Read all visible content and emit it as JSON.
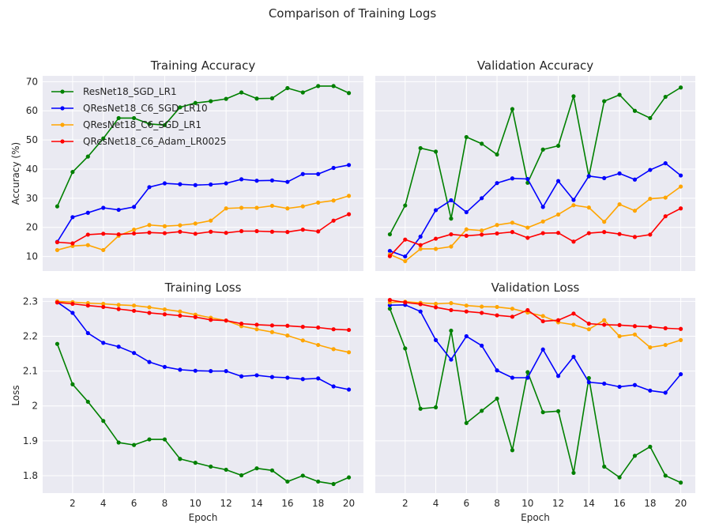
{
  "chart_data": {
    "type": "line",
    "suptitle": "Comparison of Training Logs",
    "epochs": [
      1,
      2,
      3,
      4,
      5,
      6,
      7,
      8,
      9,
      10,
      11,
      12,
      13,
      14,
      15,
      16,
      17,
      18,
      19,
      20
    ],
    "series_styles": [
      {
        "name": "ResNet18_SGD_LR1",
        "color": "#008000"
      },
      {
        "name": "QResNet18_C6_SGD_LR10",
        "color": "#0000ff"
      },
      {
        "name": "QResNet18_C6_SGD_LR1",
        "color": "#ffa500"
      },
      {
        "name": "QResNet18_C6_Adam_LR0025",
        "color": "#ff0000"
      }
    ],
    "panels": [
      {
        "title": "Training Accuracy",
        "xlabel": "",
        "ylabel": "Accuracy (%)",
        "ylim": [
          5,
          72
        ],
        "yticks": [
          10,
          20,
          30,
          40,
          50,
          60,
          70
        ],
        "xticks": [
          2,
          4,
          6,
          8,
          10,
          12,
          14,
          16,
          18,
          20
        ],
        "show_yticks": true,
        "show_xticks": false,
        "legend": "top-left",
        "series": [
          {
            "name": "ResNet18_SGD_LR1",
            "values": [
              27.2,
              39.0,
              44.3,
              50.5,
              57.5,
              57.5,
              55.5,
              55.1,
              61.2,
              62.7,
              63.3,
              64.1,
              66.3,
              64.2,
              64.3,
              67.8,
              66.3,
              68.5,
              68.5,
              66.1
            ]
          },
          {
            "name": "QResNet18_C6_SGD_LR10",
            "values": [
              15.0,
              23.5,
              25.0,
              26.7,
              26.0,
              27.0,
              33.8,
              35.1,
              34.8,
              34.5,
              34.7,
              35.1,
              36.5,
              36.0,
              36.1,
              35.6,
              38.3,
              38.3,
              40.4,
              41.4
            ]
          },
          {
            "name": "QResNet18_C6_SGD_LR1",
            "values": [
              12.2,
              13.6,
              13.9,
              12.2,
              17.1,
              19.2,
              20.8,
              20.4,
              20.7,
              21.3,
              22.3,
              26.5,
              26.7,
              26.7,
              27.4,
              26.5,
              27.2,
              28.5,
              29.2,
              30.8
            ]
          },
          {
            "name": "QResNet18_C6_Adam_LR0025",
            "values": [
              14.9,
              14.5,
              17.5,
              17.8,
              17.6,
              17.9,
              18.2,
              18.0,
              18.5,
              17.8,
              18.5,
              18.1,
              18.7,
              18.7,
              18.5,
              18.4,
              19.2,
              18.6,
              22.3,
              24.5
            ]
          }
        ]
      },
      {
        "title": "Validation Accuracy",
        "xlabel": "",
        "ylabel": "",
        "ylim": [
          5,
          72
        ],
        "yticks": [
          10,
          20,
          30,
          40,
          50,
          60,
          70
        ],
        "xticks": [
          2,
          4,
          6,
          8,
          10,
          12,
          14,
          16,
          18,
          20
        ],
        "show_yticks": false,
        "show_xticks": false,
        "legend": "",
        "series": [
          {
            "name": "ResNet18_SGD_LR1",
            "values": [
              17.6,
              27.5,
              47.2,
              46.0,
              23.0,
              51.0,
              48.7,
              45.0,
              60.6,
              35.3,
              46.7,
              48.0,
              65.0,
              37.5,
              63.3,
              65.5,
              60.0,
              57.5,
              64.8,
              68.0
            ]
          },
          {
            "name": "QResNet18_C6_SGD_LR10",
            "values": [
              11.9,
              10.0,
              16.8,
              25.9,
              29.3,
              25.2,
              30.0,
              35.2,
              36.8,
              36.6,
              27.0,
              35.9,
              29.4,
              37.6,
              36.9,
              38.5,
              36.4,
              39.7,
              42.0,
              37.8
            ]
          },
          {
            "name": "QResNet18_C6_SGD_LR1",
            "values": [
              10.7,
              8.4,
              12.6,
              12.6,
              13.4,
              19.3,
              18.9,
              20.8,
              21.6,
              19.9,
              22.0,
              24.4,
              27.6,
              26.8,
              21.9,
              27.9,
              25.7,
              29.8,
              30.2,
              34.0
            ]
          },
          {
            "name": "QResNet18_C6_Adam_LR0025",
            "values": [
              10.1,
              15.8,
              13.9,
              16.1,
              17.6,
              17.1,
              17.5,
              17.9,
              18.4,
              16.4,
              18.0,
              18.1,
              15.1,
              18.0,
              18.4,
              17.7,
              16.7,
              17.5,
              23.8,
              26.5
            ]
          }
        ]
      },
      {
        "title": "Training Loss",
        "xlabel": "Epoch",
        "ylabel": "Loss",
        "ylim": [
          1.75,
          2.31
        ],
        "yticks": [
          1.8,
          1.9,
          2.0,
          2.1,
          2.2,
          2.3
        ],
        "xticks": [
          2,
          4,
          6,
          8,
          10,
          12,
          14,
          16,
          18,
          20
        ],
        "show_yticks": true,
        "show_xticks": true,
        "legend": "",
        "series": [
          {
            "name": "ResNet18_SGD_LR1",
            "values": [
              2.178,
              2.062,
              2.012,
              1.957,
              1.895,
              1.888,
              1.904,
              1.904,
              1.848,
              1.837,
              1.826,
              1.817,
              1.801,
              1.821,
              1.815,
              1.783,
              1.8,
              1.783,
              1.776,
              1.795
            ]
          },
          {
            "name": "QResNet18_C6_SGD_LR10",
            "values": [
              2.298,
              2.267,
              2.209,
              2.181,
              2.17,
              2.152,
              2.126,
              2.112,
              2.104,
              2.101,
              2.1,
              2.1,
              2.085,
              2.088,
              2.083,
              2.081,
              2.077,
              2.079,
              2.056,
              2.047
            ]
          },
          {
            "name": "QResNet18_C6_SGD_LR1",
            "values": [
              2.3,
              2.298,
              2.295,
              2.293,
              2.29,
              2.288,
              2.283,
              2.277,
              2.271,
              2.262,
              2.253,
              2.245,
              2.229,
              2.22,
              2.212,
              2.202,
              2.188,
              2.175,
              2.163,
              2.154
            ]
          },
          {
            "name": "QResNet18_C6_Adam_LR0025",
            "values": [
              2.297,
              2.293,
              2.288,
              2.284,
              2.278,
              2.273,
              2.267,
              2.263,
              2.259,
              2.255,
              2.247,
              2.245,
              2.236,
              2.233,
              2.231,
              2.23,
              2.227,
              2.225,
              2.22,
              2.218
            ]
          }
        ]
      },
      {
        "title": "Validation Loss",
        "xlabel": "Epoch",
        "ylabel": "",
        "ylim": [
          1.75,
          2.31
        ],
        "yticks": [
          1.8,
          1.9,
          2.0,
          2.1,
          2.2,
          2.3
        ],
        "xticks": [
          2,
          4,
          6,
          8,
          10,
          12,
          14,
          16,
          18,
          20
        ],
        "show_yticks": false,
        "show_xticks": true,
        "legend": "",
        "series": [
          {
            "name": "ResNet18_SGD_LR1",
            "values": [
              2.279,
              2.165,
              1.992,
              1.996,
              2.216,
              1.951,
              1.986,
              2.021,
              1.873,
              2.097,
              1.982,
              1.985,
              1.808,
              2.08,
              1.826,
              1.795,
              1.857,
              1.883,
              1.8,
              1.78
            ]
          },
          {
            "name": "QResNet18_C6_SGD_LR10",
            "values": [
              2.289,
              2.29,
              2.271,
              2.189,
              2.133,
              2.2,
              2.173,
              2.102,
              2.081,
              2.081,
              2.162,
              2.086,
              2.141,
              2.068,
              2.064,
              2.055,
              2.06,
              2.044,
              2.038,
              2.091
            ]
          },
          {
            "name": "QResNet18_C6_SGD_LR1",
            "values": [
              2.297,
              2.299,
              2.296,
              2.293,
              2.295,
              2.288,
              2.285,
              2.284,
              2.279,
              2.268,
              2.258,
              2.24,
              2.233,
              2.22,
              2.246,
              2.2,
              2.205,
              2.168,
              2.175,
              2.189
            ]
          },
          {
            "name": "QResNet18_C6_Adam_LR0025",
            "values": [
              2.304,
              2.297,
              2.292,
              2.283,
              2.275,
              2.271,
              2.267,
              2.26,
              2.256,
              2.275,
              2.243,
              2.246,
              2.265,
              2.236,
              2.233,
              2.232,
              2.229,
              2.227,
              2.223,
              2.221
            ]
          }
        ]
      }
    ]
  }
}
